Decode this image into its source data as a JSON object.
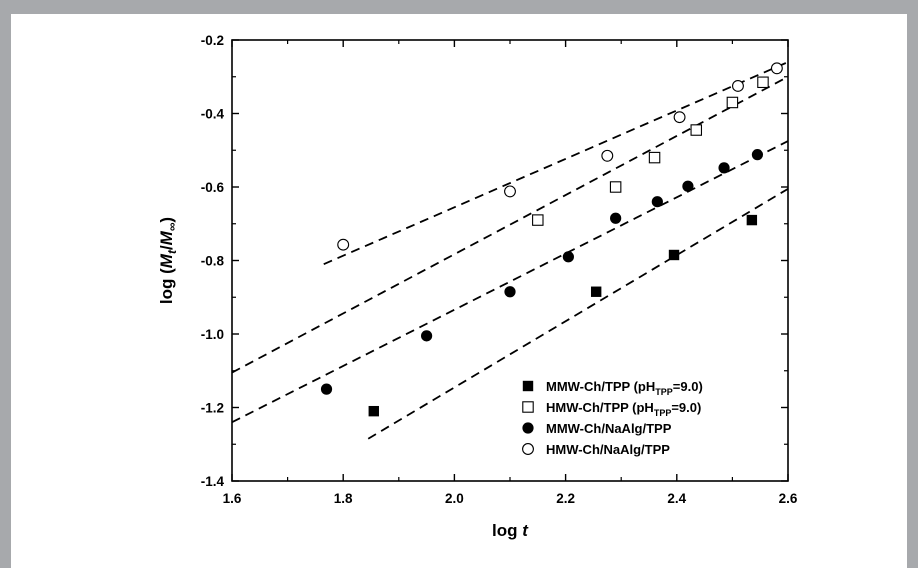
{
  "chart_data": {
    "type": "scatter",
    "xlabel": "log t",
    "ylabel": "log (Mt/M∞)",
    "xlim": [
      1.6,
      2.6
    ],
    "ylim": [
      -1.4,
      -0.2
    ],
    "xticks": [
      "1.6",
      "1.8",
      "2.0",
      "2.2",
      "2.4",
      "2.6"
    ],
    "yticks": [
      "-0.2",
      "-0.4",
      "-0.6",
      "-0.8",
      "-1.0",
      "-1.2",
      "-1.4"
    ],
    "legend_position": "bottom-right",
    "series": [
      {
        "name": "MMW-Ch/TPP (pHTPP=9.0)",
        "label_main": "MMW-Ch/TPP (pH",
        "label_sub": "TPP",
        "label_tail": "=9.0)",
        "marker": "filled-square",
        "points": [
          [
            1.855,
            -1.21
          ],
          [
            2.255,
            -0.885
          ],
          [
            2.395,
            -0.785
          ],
          [
            2.535,
            -0.69
          ]
        ],
        "fit": [
          [
            1.845,
            -1.285
          ],
          [
            2.6,
            -0.605
          ]
        ]
      },
      {
        "name": "HMW-Ch/TPP (pHTPP=9.0)",
        "label_main": "HMW-Ch/TPP (pH",
        "label_sub": "TPP",
        "label_tail": "=9.0)",
        "marker": "open-square",
        "points": [
          [
            2.15,
            -0.69
          ],
          [
            2.29,
            -0.6
          ],
          [
            2.36,
            -0.52
          ],
          [
            2.435,
            -0.445
          ],
          [
            2.5,
            -0.37
          ],
          [
            2.555,
            -0.315
          ]
        ],
        "fit": [
          [
            1.6,
            -1.105
          ],
          [
            2.6,
            -0.3
          ]
        ]
      },
      {
        "name": "MMW-Ch/NaAlg/TPP",
        "label_main": "MMW-Ch/NaAlg/TPP",
        "marker": "filled-circle",
        "points": [
          [
            1.77,
            -1.15
          ],
          [
            1.95,
            -1.005
          ],
          [
            2.1,
            -0.885
          ],
          [
            2.205,
            -0.79
          ],
          [
            2.29,
            -0.685
          ],
          [
            2.365,
            -0.64
          ],
          [
            2.42,
            -0.598
          ],
          [
            2.485,
            -0.548
          ],
          [
            2.545,
            -0.512
          ]
        ],
        "fit": [
          [
            1.6,
            -1.24
          ],
          [
            2.6,
            -0.475
          ]
        ]
      },
      {
        "name": "HMW-Ch/NaAlg/TPP",
        "label_main": "HMW-Ch/NaAlg/TPP",
        "marker": "open-circle",
        "points": [
          [
            1.8,
            -0.757
          ],
          [
            2.1,
            -0.612
          ],
          [
            2.275,
            -0.515
          ],
          [
            2.405,
            -0.41
          ],
          [
            2.51,
            -0.325
          ],
          [
            2.58,
            -0.277
          ]
        ],
        "fit": [
          [
            1.765,
            -0.81
          ],
          [
            2.6,
            -0.26
          ]
        ]
      }
    ]
  }
}
